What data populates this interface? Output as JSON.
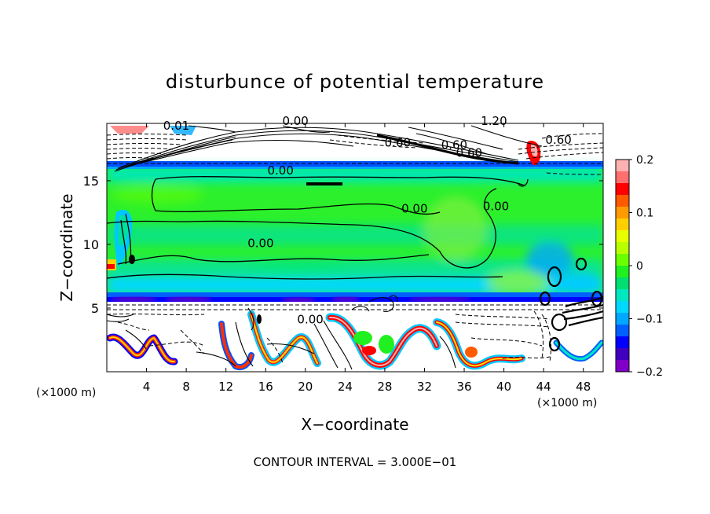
{
  "chart_data": {
    "type": "heatmap",
    "title": "disturbunce of potential temperature",
    "xlabel": "X−coordinate",
    "ylabel": "Z−coordinate",
    "x_unit": "(×1000 m)",
    "z_unit": "(×1000 m)",
    "xlim": [
      0,
      50
    ],
    "ylim": [
      0,
      19.5
    ],
    "x_ticks": [
      4,
      8,
      12,
      16,
      20,
      24,
      28,
      32,
      36,
      40,
      44,
      48
    ],
    "y_ticks": [
      5,
      10,
      15
    ],
    "colorbar": {
      "range": [
        -0.2,
        0.2
      ],
      "ticks": [
        0.2,
        0.1,
        0,
        -0.1,
        -0.2
      ],
      "tick_labels": [
        "0.2",
        "0.1",
        "0",
        "−0.1",
        "−0.2"
      ],
      "colors": [
        "#ffb0b0",
        "#ff6f6f",
        "#ff0000",
        "#ff5a00",
        "#ff9a00",
        "#ffd000",
        "#e8ff00",
        "#b8ff00",
        "#6cff00",
        "#20f020",
        "#00e070",
        "#00e8c0",
        "#00d8ff",
        "#00a8ff",
        "#0060ff",
        "#0000ff",
        "#4000c0",
        "#8000c8"
      ]
    },
    "contour_labels": [
      {
        "text": "0.00",
        "x": 17.5,
        "z": 15.8
      },
      {
        "text": "0.00",
        "x": 31.0,
        "z": 12.8
      },
      {
        "text": "0.00",
        "x": 39.2,
        "z": 13.0
      },
      {
        "text": "0.00",
        "x": 15.5,
        "z": 10.1
      },
      {
        "text": "0.00",
        "x": 20.5,
        "z": 4.1
      },
      {
        "text": "0.00",
        "x": 19.0,
        "z": 19.7
      },
      {
        "text": "0.60",
        "x": 29.3,
        "z": 18.0
      },
      {
        "text": "0.60",
        "x": 35.0,
        "z": 17.8
      },
      {
        "text": "0.60",
        "x": 36.5,
        "z": 17.2
      },
      {
        "text": "0.60",
        "x": 45.5,
        "z": 18.2
      },
      {
        "text": "1.20",
        "x": 39.0,
        "z": 19.7
      },
      {
        "text": "0.01",
        "x": 7.0,
        "z": 19.3
      }
    ],
    "grid": false,
    "legend": "colorbar at right"
  },
  "footer": "CONTOUR INTERVAL = 3.000E−01"
}
